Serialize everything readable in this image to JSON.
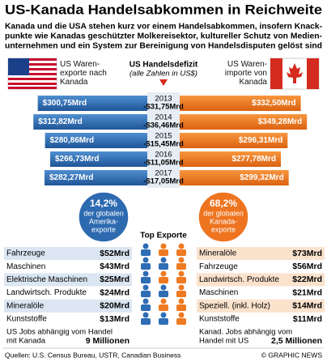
{
  "header": {
    "title": "US-Kanada Handelsabkommen in Reichweite",
    "subtitle": [
      "Kanada und die USA stehen kurz vor einem Handelsabkommen, insofern Knack-",
      "punkte wie Kanadas geschützter Molkereisektor, kultureller Schutz von Medien-",
      "unternehmen und ein System zur Bereinigung von Handelsdisputen gelöst sind"
    ]
  },
  "chart_data": {
    "type": "bar",
    "categories": [
      "2013",
      "2014",
      "2015",
      "2016",
      "2017"
    ],
    "series": [
      {
        "name": "US Waren-exporte nach Kanada",
        "color": "#2f6db5",
        "values": [
          300.75,
          312.82,
          280.86,
          266.73,
          282.27
        ],
        "value_labels": [
          "$300,75Mrd",
          "$312,82Mrd",
          "$280,86Mrd",
          "$266,73Mrd",
          "$282,27Mrd"
        ]
      },
      {
        "name": "US Waren-importe von Kanada",
        "color": "#f07a22",
        "values": [
          332.5,
          349.28,
          296.31,
          277.78,
          299.32
        ],
        "value_labels": [
          "$332,50Mrd",
          "$349,28Mrd",
          "$296,31Mrd",
          "$277,78Mrd",
          "$299,32Mrd"
        ]
      }
    ]
  },
  "deficit": {
    "title": "US Handelsdefizit",
    "note": "(alle Zahlen in US$)",
    "labels": [
      "-$31,75Mrd",
      "-$36,46Mrd",
      "-$15,45Mrd",
      "-$11,05Mrd",
      "-$17,05Mrd"
    ]
  },
  "shares": [
    {
      "label": "14,2%",
      "text": [
        "der globalen",
        "Amerika-",
        "exporte"
      ]
    },
    {
      "label": "68,2%",
      "text": [
        "der globalen",
        "Kanada-",
        "exporte"
      ]
    }
  ],
  "top_exports": {
    "title": "Top Exporte",
    "us": [
      [
        "Fahrzeuge",
        "$52Mrd"
      ],
      [
        "Maschinen",
        "$43Mrd"
      ],
      [
        "Elektrische Maschinen",
        "$25Mrd"
      ],
      [
        "Landwirtsch. Produkte",
        "$24Mrd"
      ],
      [
        "Mineralöle",
        "$20Mrd"
      ],
      [
        "Kunststoffe",
        "$13Mrd"
      ]
    ],
    "canada": [
      [
        "Mineralöle",
        "$73Mrd"
      ],
      [
        "Fahrzeuge",
        "$56Mrd"
      ],
      [
        "Landwirtsch. Produkte",
        "$22Mrd"
      ],
      [
        "Maschinen",
        "$21Mrd"
      ],
      [
        "Speziell. (inkl. Holz)",
        "$14Mrd"
      ],
      [
        "Kunststoffe",
        "$11Mrd"
      ]
    ]
  },
  "jobs": {
    "us": {
      "label": [
        "US Jobs abhängig vom Handel",
        "mit Kanada"
      ],
      "value": "9 Millionen"
    },
    "canada": {
      "label": [
        "Kanad. Jobs abhängig vom",
        "Handel mit US"
      ],
      "value": "2,5 Millionen"
    }
  },
  "footer": {
    "source": "Quellen: U.S. Census Bureau, USTR, Canadian Business",
    "credit": "© GRAPHIC NEWS"
  }
}
